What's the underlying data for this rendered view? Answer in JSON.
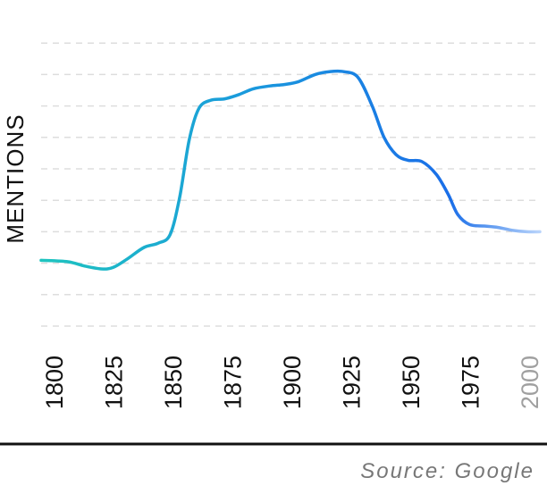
{
  "chart_data": {
    "type": "line",
    "title": "",
    "xlabel": "",
    "ylabel": "MENTIONS",
    "x_ticks": [
      "1800",
      "1825",
      "1850",
      "1875",
      "1900",
      "1925",
      "1950",
      "1975",
      "2000"
    ],
    "xlim": [
      1800,
      2000
    ],
    "ylim": [
      0,
      10
    ],
    "grid": "horizontal dashed",
    "legend": "none",
    "series": [
      {
        "x": [
          1800,
          1806,
          1813,
          1820,
          1825,
          1831,
          1838,
          1844,
          1849,
          1853,
          1857,
          1861,
          1866,
          1872,
          1878,
          1884,
          1891,
          1897,
          1903,
          1910,
          1916,
          1922,
          1928,
          1934,
          1939,
          1944,
          1949,
          1955,
          1961,
          1966,
          1970,
          1975,
          1981,
          1987,
          1993,
          1999,
          2000
        ],
        "y": [
          2.3,
          2.25,
          2.1,
          2.0,
          2.05,
          2.35,
          2.75,
          2.9,
          3.2,
          4.5,
          6.5,
          7.6,
          7.9,
          7.95,
          8.1,
          8.3,
          8.4,
          8.45,
          8.55,
          8.8,
          8.9,
          8.9,
          8.7,
          7.7,
          6.6,
          6.0,
          5.8,
          5.75,
          5.3,
          4.6,
          3.9,
          3.55,
          3.5,
          3.45,
          3.35,
          3.3,
          3.3
        ]
      }
    ],
    "colors": {
      "line_start": "#1ec4bf",
      "line_mid": "#1a9bdc",
      "line_end": "#1a6ee8",
      "line_fade": "#b9d4fb",
      "grid": "#dddddd",
      "axis": "#111111",
      "tick_text": "#111111",
      "tick_text_muted": "#a0a0a0"
    }
  },
  "source": "Source: Google"
}
